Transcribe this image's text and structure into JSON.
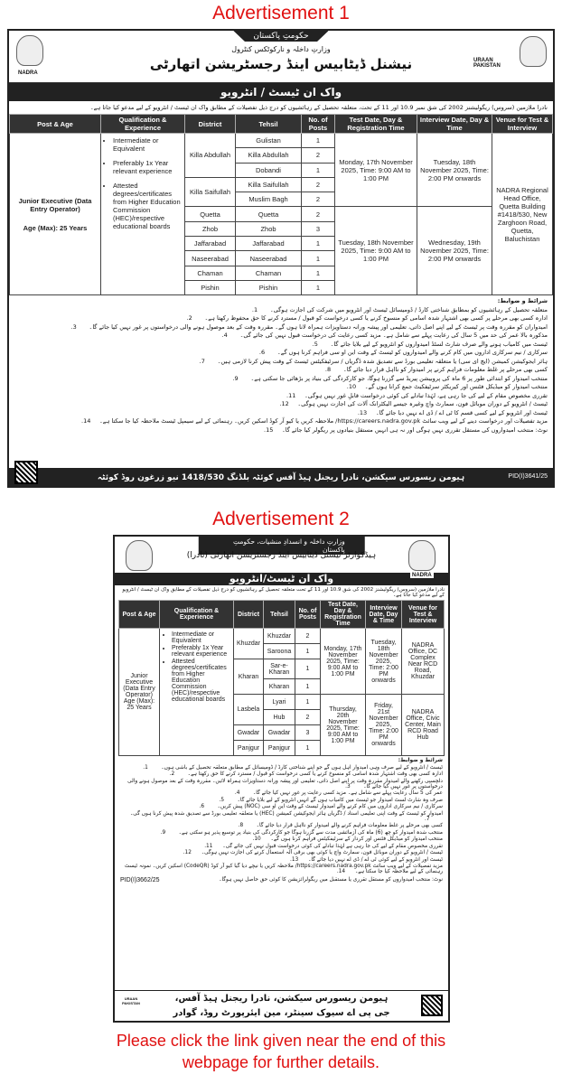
{
  "ad1": {
    "title": "Advertisement 1",
    "gov": "حکومتِ پاکستان",
    "ministry": "وزارتِ داخلہ و نارکوٹکس کنٹرول",
    "org": "نیشنل ڈیٹابیس اینڈ رجسٹریشن اتھارٹی",
    "left_logo": "NADRA",
    "right_logo": "URAAN PAKISTAN",
    "banner": "واک ان ٹیسٹ / انٹرویو",
    "intro": "نادرا ملازمین (سروس) ریگولیشنز 2002 کی شق نمبر 10.9 اور 11 کے تحت، متعلقہ تحصیل کے رہائشیوں کو درج ذیل تفصیلات کے مطابق واک ان ٹیسٹ / انٹرویو کے لیے مدعو کیا جاتا ہے۔",
    "headers": [
      "Post & Age",
      "Qualification & Experience",
      "District",
      "Tehsil",
      "No. of Posts",
      "Test Date, Day & Registration Time",
      "Interview Date, Day & Time",
      "Venue for Test & Interview"
    ],
    "post": "Junior Executive (Data Entry Operator)",
    "age": "Age (Max): 25 Years",
    "qualifications": [
      "Intermediate or Equivalent",
      "Preferably 1x Year relevant experience",
      "Attested degrees/certificates from Higher Education Commission (HEC)/respective educational boards"
    ],
    "districts": [
      {
        "name": "Killa Abdullah",
        "tehsils": [
          {
            "name": "Gulistan",
            "posts": "1"
          },
          {
            "name": "Killa Abdullah",
            "posts": "2"
          },
          {
            "name": "Dobandi",
            "posts": "1"
          }
        ]
      },
      {
        "name": "Killa Saifullah",
        "tehsils": [
          {
            "name": "Killa Saifullah",
            "posts": "2"
          },
          {
            "name": "Muslim Bagh",
            "posts": "2"
          }
        ]
      },
      {
        "name": "Quetta",
        "tehsils": [
          {
            "name": "Quetta",
            "posts": "2"
          }
        ]
      },
      {
        "name": "Zhob",
        "tehsils": [
          {
            "name": "Zhob",
            "posts": "3"
          }
        ]
      },
      {
        "name": "Jaffarabad",
        "tehsils": [
          {
            "name": "Jaffarabad",
            "posts": "1"
          }
        ]
      },
      {
        "name": "Naseerabad",
        "tehsils": [
          {
            "name": "Naseerabad",
            "posts": "1"
          }
        ]
      },
      {
        "name": "Chaman",
        "tehsils": [
          {
            "name": "Chaman",
            "posts": "1"
          }
        ]
      },
      {
        "name": "Pishin",
        "tehsils": [
          {
            "name": "Pishin",
            "posts": "1"
          }
        ]
      }
    ],
    "schedules": [
      {
        "rows": 5,
        "test": "Monday, 17th November 2025, Time: 9:00 AM to 1:00 PM",
        "interview": "Tuesday, 18th November 2025, Time: 2:00 PM onwards"
      },
      {
        "rows": 6,
        "test": "Tuesday, 18th November 2025, Time: 9:00 AM to 1:00 PM",
        "interview": "Wednesday, 19th November 2025, Time: 2:00 PM onwards"
      }
    ],
    "venues": [
      {
        "rows": 11,
        "text": "NADRA Regional Head Office, Quetta Building #1418/530, New Zarghoon Road, Quetta, Baluchistan"
      }
    ],
    "conditions_title": "شرائط و ضوابط:",
    "conditions": [
      "متعلقہ تحصیل کے رہائشیوں کو بمطابق شناختی کارڈ / ڈومیسائل ٹیسٹ اور انٹرویو میں شرکت کی اجازت ہوگی۔",
      "ادارہ کسی بھی مرحلے پر کسی بھی اشتہار شدہ اسامی کو منسوخ کرنے یا کسی درخواست کو قبول / مسترد کرنے کا حق محفوظ رکھتا ہے۔",
      "امیدواران کو مقررہ وقت پر ٹیسٹ کے لیے اپنے اصل ذاتی، تعلیمی اور پیشہ ورانہ دستاویزات ہمراہ لانا ہوں گے۔ مقررہ وقت کے بعد موصول ہونے والی درخواستوں پر غور نہیں کیا جائے گا۔",
      "مذکورہ بالا عمر کی حد میں 5 سال کی رعایت پہلے سے شامل ہے۔ مزید کسی رعایت کی درخواست قبول نہیں کی جائے گی۔",
      "ٹیسٹ میں کامیاب ہونے والے صرف شارٹ لسٹڈ امیدواروں کو انٹرویو کے لیے بلایا جائے گا۔",
      "سرکاری / نیم سرکاری اداروں میں کام کرنے والے امیدواروں کو ٹیسٹ کے وقت این او سی فراہم کرنا ہوں گے۔",
      "ہائر ایجوکیشن کمیشن (ایچ ای سی) یا متعلقہ تعلیمی بورڈ سے تصدیق شدہ ڈگریاں / سرٹیفکیٹس ٹیسٹ کے وقت پیش کرنا لازمی ہیں۔",
      "کسی بھی مرحلے پر غلط معلومات فراہم کرنے پر امیدوار کو نااہل قرار دیا جائے گا۔",
      "منتخب امیدوار کو ابتدائی طور پر 6 ماہ کی پروبیشن پیریڈ سے گزرنا ہوگا، جو کارکردگی کی بنیاد پر بڑھائی جا سکتی ہے۔",
      "منتخب امیدوار کو میڈیکل فٹنس اور کیریکٹر سرٹیفکیٹ جمع کرانا ہوں گے۔",
      "تقرری مخصوص مقام کے لیے کی جا رہی ہے، لہٰذا تبادلے کی کوئی درخواست قابلِ غور نہیں ہوگی۔",
      "ٹیسٹ / انٹرویو کے دوران موبائل فون، سمارٹ واچ وغیرہ جیسے الیکٹرانک آلات کی اجازت نہیں ہوگی۔",
      "ٹیسٹ اور انٹرویو کے لیے کسی قسم کا ٹی اے / ڈی اے نہیں دیا جائے گا۔",
      "مزید تفصیلات اور درخواست دینے کے لیے ویب سائٹ https://careers.nadra.gov.pk/ ملاحظہ کریں یا کیو آر کوڈ اسکین کریں۔ رہنمائی کے لیے سیمپل ٹیسٹ ملاحظہ کیا جا سکتا ہے۔",
      "نوٹ: منتخب امیدواروں کی مستقل تقرری نہیں ہوگی اور نہ ہی انہیں مستقل بنیادوں پر ریگولر کیا جائے گا۔"
    ],
    "footer": "ہیومن ریسورس سیکشن، نادرا ریجنل ہیڈ آفس کوئٹہ بلڈنگ 1418/530 نیو زرغون روڈ کوئٹہ",
    "pid": "PID(I)3641/25"
  },
  "ad2": {
    "title": "Advertisement 2",
    "ministry": "وزارتِ داخلہ و انسدادِ منشیات، حکومتِ پاکستان",
    "org": "ہیڈکوارٹر نیشنل ڈیٹابیس اینڈ رجسٹریشن اتھارٹی (نادرا)",
    "right_logo": "NADRA",
    "banner": "واک ان ٹیسٹ/انٹرویو",
    "intro": "نادرا ملازمین (سروس) ریگولیشنز 2002 کی شق 10.9 اور 11 کے تحت متعلقہ تحصیل کے رہائشیوں کو درج ذیل تفصیلات کے مطابق واک ان ٹیسٹ / انٹرویو کے لیے مدعو کیا جاتا ہے۔",
    "headers": [
      "Post & Age",
      "Qualification & Experience",
      "District",
      "Tehsil",
      "No. of Posts",
      "Test Date, Day & Registration Time",
      "Interview Date, Day & Time",
      "Venue for Test & Interview"
    ],
    "post": "Junior Executive (Data Entry Operator) Age (Max): 25 Years",
    "qualifications": [
      "Intermediate or Equivalent",
      "Preferably 1x Year relevant experience",
      "Attested degrees/certificates from Higher Education Commission (HEC)/respective educational boards"
    ],
    "districts": [
      {
        "name": "Khuzdar",
        "tehsils": [
          {
            "name": "Khuzdar",
            "posts": "2"
          },
          {
            "name": "Saroona",
            "posts": "1"
          }
        ]
      },
      {
        "name": "Kharan",
        "tehsils": [
          {
            "name": "Sar-e-Kharan",
            "posts": "1"
          },
          {
            "name": "Kharan",
            "posts": "1"
          }
        ]
      },
      {
        "name": "Lasbela",
        "tehsils": [
          {
            "name": "Lyari",
            "posts": "1"
          },
          {
            "name": "Hub",
            "posts": "2"
          }
        ]
      },
      {
        "name": "Gwadar",
        "tehsils": [
          {
            "name": "Gwadar",
            "posts": "3"
          }
        ]
      },
      {
        "name": "Panjgur",
        "tehsils": [
          {
            "name": "Panjgur",
            "posts": "1"
          }
        ]
      }
    ],
    "schedules": [
      {
        "rows": 4,
        "test": "Monday, 17th November 2025, Time: 9:00 AM to 1:00 PM",
        "interview": "Tuesday, 18th November 2025, Time: 2:00 PM onwards"
      },
      {
        "rows": 4,
        "test": "Thursday, 20th November 2025, Time: 9:00 AM to 1:00 PM",
        "interview": "Friday, 21st November 2025, Time: 2:00 PM onwards"
      }
    ],
    "venues": [
      {
        "rows": 4,
        "text": "NADRA Office, DC Complex Near RCD Road, Khuzdar"
      },
      {
        "rows": 4,
        "text": "NADRA Office, Civic Center, Main RCD Road Hub"
      }
    ],
    "conditions_title": "شرائط و ضوابط:",
    "conditions": [
      "ٹیسٹ / انٹرویو کے لیے صرف وہی امیدوار اہل ہوں گے جو اپنے شناختی کارڈ / ڈومیسائل کے مطابق متعلقہ تحصیل کے باشی ہوں۔",
      "ادارہ کسی بھی وقت اشتہار شدہ اسامی کو منسوخ کرنے یا کسی درخواست کو قبول / مسترد کرنے کا حق رکھتا ہے۔",
      "دلچسپی رکھنے والے امیدوار مقررہ وقت پر اپنے اصل ذاتی، تعلیمی اور پیشہ ورانہ دستاویزات ہمراہ لائیں۔ مقررہ وقت کے بعد موصول ہونے والی درخواستوں پر غور نہیں کیا جائے گا۔",
      "عمر کی 5 سال رعایت پہلے سے شامل ہے۔ مزید کسی رعایت پر غور نہیں کیا جائے گا۔",
      "صرف وہ شارٹ لسٹ امیدوار جو ٹیسٹ میں کامیاب ہوں گے انہیں انٹرویو کے لیے بلایا جائے گا۔",
      "سرکاری / نیم سرکاری اداروں میں کام کرنے والے امیدوار ٹیسٹ کے وقت این او سی (NOC) پیش کریں۔",
      "امیدوار کو ٹیسٹ کے وقت اپنی تعلیمی اسناد / ڈگریاں ہائر ایجوکیشن کمیشن (HEC) یا متعلقہ تعلیمی بورڈ سے تصدیق شدہ پیش کرنا ہوں گی۔",
      "کسی بھی مرحلے پر غلط معلومات فراہم کرنے والے امیدوار کو نااہل قرار دیا جائے گا۔",
      "منتخب شدہ امیدوار کو چھ (6) ماہ کی آزمائشی مدت سے گزرنا ہوگا جو کارکردگی کی بنیاد پر توسیع پذیر ہو سکتی ہے۔",
      "منتخب امیدوار کو میڈیکل فٹنس اور کردار کے سرٹیفکیٹس فراہم کرنا ہوں گے۔",
      "تقرری مخصوص مقام کے لیے کی جا رہی ہے لہٰذا تبادلے کی کوئی درخواست قبول نہیں کی جائے گی۔",
      "ٹیسٹ / انٹرویو کے دوران موبائل فون، سمارٹ واچ یا کوئی بھی برقی آلہ استعمال کرنے کی اجازت نہیں ہوگی۔",
      "ٹیسٹ اور انٹرویو کے لیے کوئی ٹی اے / ڈی اے نہیں دیا جائے گا۔",
      "مزید تفصیلات کے لیے ویب سائٹ https://careers.nadra.gov.pk/ ملاحظہ کریں یا نیچے دیا گیا کیو آر کوڈ (CodeQR) اسکین کریں۔ نمونہ ٹیسٹ رہنمائی کے لیے ملاحظہ کیا جا سکتا ہے۔"
    ],
    "note": "نوٹ: منتخب امیدواروں کو مستقل تقرری یا مستقبل میں ریگولرائزیشن کا کوئی حق حاصل نہیں ہوگا۔",
    "pid": "PID(I)3662/25",
    "footer_line1": "ہیومن ریسورس سیکشن، نادرا ریجنل ہیڈ آفس،",
    "footer_line2": "جی پی اے سیوک سینٹر، مین ایئرپورٹ روڈ، گوادر",
    "footer_logo": "URAAN PAKISTAN"
  },
  "footnote": "Please click the link given near the end of this webpage for further details."
}
